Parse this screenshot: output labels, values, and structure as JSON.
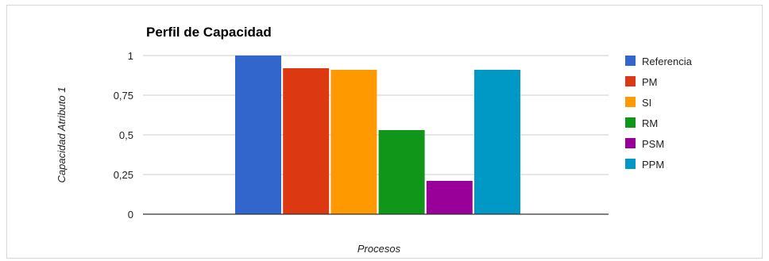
{
  "chart_data": {
    "type": "bar",
    "title": "Perfil de Capacidad",
    "xlabel": "Procesos",
    "ylabel": "Capacidad Atributo 1",
    "categories": [
      ""
    ],
    "ylim": [
      0,
      1
    ],
    "yticks": [
      "0",
      "0,25",
      "0,5",
      "0,75",
      "1"
    ],
    "yticks_values": [
      0,
      0.25,
      0.5,
      0.75,
      1
    ],
    "grid": true,
    "legend_position": "right",
    "series": [
      {
        "name": "Referencia",
        "values": [
          1.0
        ],
        "color": "#3366cc"
      },
      {
        "name": "PM",
        "values": [
          0.92
        ],
        "color": "#dc3912"
      },
      {
        "name": "SI",
        "values": [
          0.91
        ],
        "color": "#ff9900"
      },
      {
        "name": "RM",
        "values": [
          0.53
        ],
        "color": "#109618"
      },
      {
        "name": "PSM",
        "values": [
          0.21
        ],
        "color": "#990099"
      },
      {
        "name": "PPM",
        "values": [
          0.91
        ],
        "color": "#0099c6"
      }
    ]
  }
}
